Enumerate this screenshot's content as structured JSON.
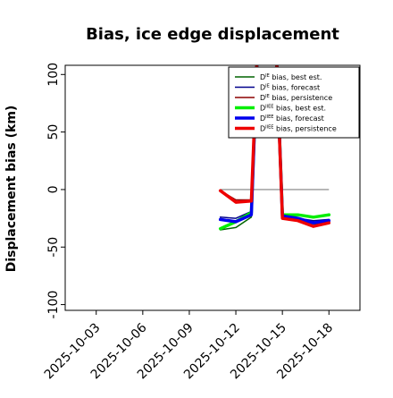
{
  "chart_data": {
    "type": "line",
    "title": "Bias, ice edge displacement",
    "xlabel": "",
    "ylabel": "Displacement bias (km)",
    "ylim": [
      -105,
      108
    ],
    "xlim": [
      "2025-10-01",
      "2025-10-20"
    ],
    "grid": false,
    "legend_position": "top-right",
    "x_ticks": [
      {
        "label": "2025-10-03",
        "date": "2025-10-03",
        "color": "#000000"
      },
      {
        "label": "2025-10-06",
        "date": "2025-10-06",
        "color": "#000000"
      },
      {
        "label": "2025-10-09",
        "date": "2025-10-09",
        "color": "#228B22"
      },
      {
        "label": "2025-10-12",
        "date": "2025-10-12",
        "color": "#000000"
      },
      {
        "label": "2025-10-15",
        "date": "2025-10-15",
        "color": "#000000"
      },
      {
        "label": "2025-10-18",
        "date": "2025-10-18",
        "color": "#000000"
      }
    ],
    "y_ticks": [
      -100,
      -50,
      0,
      50,
      100
    ],
    "zero_line": true,
    "series": [
      {
        "name": "D bias, best est.",
        "sup": "IE",
        "color": "#006400",
        "width": 1.5,
        "points": [
          [
            "2025-10-11",
            -35
          ],
          [
            "2025-10-12",
            -33
          ],
          [
            "2025-10-13",
            -24
          ],
          [
            "2025-10-13.5",
            160
          ],
          [
            "2025-10-14.5",
            160
          ],
          [
            "2025-10-15",
            -24
          ],
          [
            "2025-10-16",
            -25
          ],
          [
            "2025-10-17",
            -30
          ],
          [
            "2025-10-18",
            -29
          ]
        ]
      },
      {
        "name": "D bias, forecast",
        "sup": "IE",
        "color": "#00008B",
        "width": 1.5,
        "points": [
          [
            "2025-10-11",
            -24
          ],
          [
            "2025-10-12",
            -25
          ],
          [
            "2025-10-13",
            -19
          ],
          [
            "2025-10-13.5",
            160
          ],
          [
            "2025-10-14.5",
            160
          ],
          [
            "2025-10-15",
            -24
          ],
          [
            "2025-10-16",
            -25
          ],
          [
            "2025-10-17",
            -27
          ],
          [
            "2025-10-18",
            -26
          ]
        ]
      },
      {
        "name": "D bias, persistence",
        "sup": "IE",
        "color": "#8B0000",
        "width": 1.5,
        "points": [
          [
            "2025-10-11",
            -1
          ],
          [
            "2025-10-12",
            -9
          ],
          [
            "2025-10-13",
            -9
          ],
          [
            "2025-10-13.5",
            160
          ],
          [
            "2025-10-14.5",
            160
          ],
          [
            "2025-10-15",
            -23
          ],
          [
            "2025-10-16",
            -26
          ],
          [
            "2025-10-17",
            -32
          ],
          [
            "2025-10-18",
            -29
          ]
        ]
      },
      {
        "name": "D bias, best est.",
        "sup": "IIEE",
        "color": "#00EE00",
        "width": 3.5,
        "points": [
          [
            "2025-10-11",
            -34
          ],
          [
            "2025-10-12",
            -28
          ],
          [
            "2025-10-13",
            -20
          ],
          [
            "2025-10-13.5",
            160
          ],
          [
            "2025-10-14.5",
            160
          ],
          [
            "2025-10-15",
            -22
          ],
          [
            "2025-10-16",
            -22
          ],
          [
            "2025-10-17",
            -24
          ],
          [
            "2025-10-18",
            -22
          ]
        ]
      },
      {
        "name": "D bias, forecast",
        "sup": "IIEE",
        "color": "#0000EE",
        "width": 3.5,
        "points": [
          [
            "2025-10-11",
            -26
          ],
          [
            "2025-10-12",
            -28
          ],
          [
            "2025-10-13",
            -22
          ],
          [
            "2025-10-13.5",
            160
          ],
          [
            "2025-10-14.5",
            160
          ],
          [
            "2025-10-15",
            -23
          ],
          [
            "2025-10-16",
            -25
          ],
          [
            "2025-10-17",
            -29
          ],
          [
            "2025-10-18",
            -27
          ]
        ]
      },
      {
        "name": "D bias, persistence",
        "sup": "IIEE",
        "color": "#EE0000",
        "width": 3.5,
        "points": [
          [
            "2025-10-11",
            -1
          ],
          [
            "2025-10-12",
            -11
          ],
          [
            "2025-10-13",
            -10
          ],
          [
            "2025-10-13.5",
            160
          ],
          [
            "2025-10-14.5",
            160
          ],
          [
            "2025-10-15",
            -25
          ],
          [
            "2025-10-16",
            -27
          ],
          [
            "2025-10-17",
            -32
          ],
          [
            "2025-10-18",
            -29
          ]
        ]
      }
    ]
  }
}
